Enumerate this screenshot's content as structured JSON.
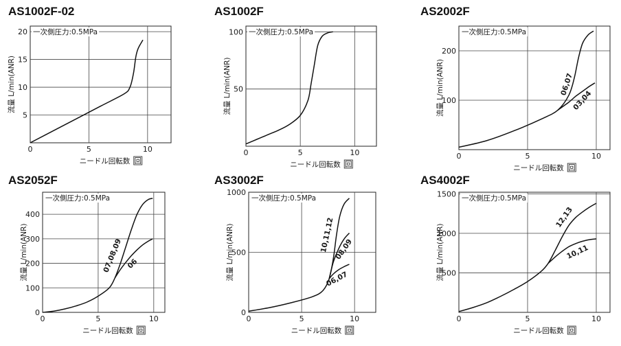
{
  "colors": {
    "curve": "#111111",
    "grid": "#444444",
    "frame": "#222222",
    "background": "#ffffff"
  },
  "chart_data": [
    {
      "type": "line",
      "title": "AS1002F-02",
      "xlabel": "ニードル回転数",
      "xlabel_unit": "回",
      "ylabel": "流量 L/min(ANR)",
      "annotation": "一次側圧力:0.5MPa",
      "xlim": [
        0,
        12
      ],
      "ylim": [
        0,
        21
      ],
      "xticks": [
        "0",
        "5",
        "10"
      ],
      "xtick_values": [
        0,
        5,
        10
      ],
      "yticks": [
        "5",
        "10",
        "15",
        "20"
      ],
      "ytick_values": [
        5,
        10,
        15,
        20
      ],
      "grid": true,
      "series": [
        {
          "name": "",
          "x": [
            0,
            2,
            4,
            6,
            8,
            8.5,
            8.8,
            9.0,
            9.2,
            9.6
          ],
          "y": [
            0,
            2.2,
            4.4,
            6.6,
            8.8,
            10.0,
            12.5,
            15.5,
            17.0,
            18.5
          ]
        }
      ]
    },
    {
      "type": "line",
      "title": "AS1002F",
      "xlabel": "ニードル回転数",
      "xlabel_unit": "回",
      "ylabel": "流量 L/min(ANR)",
      "annotation": "一次側圧力:0.5MPa",
      "xlim": [
        0,
        12
      ],
      "ylim": [
        0,
        105
      ],
      "xticks": [
        "0",
        "5",
        "10"
      ],
      "xtick_values": [
        0,
        5,
        10
      ],
      "yticks": [
        "50",
        "100"
      ],
      "ytick_values": [
        50,
        100
      ],
      "grid": true,
      "series": [
        {
          "name": "",
          "x": [
            0,
            1,
            2,
            3,
            4,
            5,
            5.7,
            6.0,
            6.3,
            6.6,
            7.0,
            7.5,
            8.0
          ],
          "y": [
            2,
            6,
            10,
            14,
            19,
            27,
            40,
            55,
            72,
            88,
            96,
            99,
            100
          ]
        }
      ]
    },
    {
      "type": "line",
      "title": "AS2002F",
      "xlabel": "ニードル回転数",
      "xlabel_unit": "回",
      "ylabel": "流量 L/min(ANR)",
      "annotation": "一次側圧力:0.5MPa",
      "xlim": [
        0,
        11
      ],
      "ylim": [
        0,
        250
      ],
      "xticks": [
        "0",
        "5",
        "10"
      ],
      "xtick_values": [
        0,
        5,
        10
      ],
      "yticks": [
        "100",
        "200"
      ],
      "ytick_values": [
        100,
        200
      ],
      "grid": true,
      "series": [
        {
          "name": "06,07",
          "label": "06,07",
          "x": [
            0,
            2,
            4,
            6,
            7.2,
            8.0,
            8.4,
            8.7,
            9.0,
            9.4,
            9.8
          ],
          "y": [
            5,
            18,
            38,
            62,
            80,
            110,
            145,
            185,
            215,
            232,
            240
          ]
        },
        {
          "name": "03,04",
          "label": "03,04",
          "x": [
            7.2,
            8.0,
            8.5,
            9.0,
            9.5,
            9.9
          ],
          "y": [
            80,
            96,
            108,
            118,
            128,
            135
          ]
        }
      ]
    },
    {
      "type": "line",
      "title": "AS2052F",
      "xlabel": "ニードル回転数",
      "xlabel_unit": "回",
      "ylabel": "流量 L/min(ANR)",
      "annotation": "一次側圧力:0.5MPa",
      "xlim": [
        0,
        11
      ],
      "ylim": [
        0,
        490
      ],
      "xticks": [
        "0",
        "5",
        "10"
      ],
      "xtick_values": [
        0,
        5,
        10
      ],
      "yticks": [
        "0",
        "100",
        "200",
        "300",
        "400"
      ],
      "ytick_values": [
        0,
        100,
        200,
        300,
        400
      ],
      "grid": true,
      "series": [
        {
          "name": "07,08,09",
          "label": "07,08,09",
          "x": [
            0,
            1,
            2,
            3,
            4,
            5,
            6,
            6.5,
            7.0,
            7.5,
            8.0,
            8.5,
            9.0,
            9.5,
            9.9
          ],
          "y": [
            0,
            5,
            14,
            26,
            42,
            66,
            100,
            140,
            200,
            270,
            340,
            400,
            440,
            460,
            465
          ]
        },
        {
          "name": "06",
          "label": "06",
          "x": [
            6.5,
            7.0,
            7.5,
            8.0,
            8.5,
            9.0,
            9.5,
            9.9
          ],
          "y": [
            140,
            175,
            205,
            232,
            255,
            275,
            290,
            300
          ]
        }
      ]
    },
    {
      "type": "line",
      "title": "AS3002F",
      "xlabel": "ニードル回転数",
      "xlabel_unit": "回",
      "ylabel": "流量 L/min(ANR)",
      "annotation": "一次側圧力:0.5MPa",
      "xlim": [
        0,
        12
      ],
      "ylim": [
        0,
        1000
      ],
      "xticks": [
        "0",
        "5",
        "10"
      ],
      "xtick_values": [
        0,
        5,
        10
      ],
      "yticks": [
        "0",
        "500",
        "1000"
      ],
      "ytick_values": [
        0,
        500,
        1000
      ],
      "grid": true,
      "series": [
        {
          "name": "10,11,12",
          "label": "10,11,12",
          "x": [
            0,
            2,
            4,
            6,
            7.0,
            7.6,
            8.0,
            8.3,
            8.6,
            9.0,
            9.5
          ],
          "y": [
            10,
            40,
            80,
            130,
            180,
            280,
            450,
            650,
            800,
            900,
            950
          ]
        },
        {
          "name": "08,09",
          "label": "08,09",
          "x": [
            7.6,
            8.0,
            8.5,
            9.0,
            9.5
          ],
          "y": [
            280,
            420,
            530,
            610,
            660
          ]
        },
        {
          "name": "06,07",
          "label": "06,07",
          "x": [
            7.6,
            8.0,
            8.5,
            9.0,
            9.5
          ],
          "y": [
            280,
            320,
            355,
            380,
            400
          ]
        }
      ]
    },
    {
      "type": "line",
      "title": "AS4002F",
      "xlabel": "ニードル回転数",
      "xlabel_unit": "回",
      "ylabel": "流量 L/min(ANR)",
      "annotation": "一次側圧力:0.5MPa",
      "xlim": [
        0,
        11
      ],
      "ylim": [
        0,
        1520
      ],
      "xticks": [
        "0",
        "5",
        "10"
      ],
      "xtick_values": [
        0,
        5,
        10
      ],
      "yticks": [
        "500",
        "1000",
        "1500"
      ],
      "ytick_values": [
        500,
        1000,
        1500
      ],
      "grid": true,
      "series": [
        {
          "name": "12,13",
          "label": "12,13",
          "x": [
            0,
            1,
            2,
            3,
            4,
            5,
            6,
            6.5,
            7.0,
            7.5,
            8.0,
            8.5,
            9.0,
            9.5,
            10.0
          ],
          "y": [
            10,
            60,
            120,
            200,
            290,
            390,
            520,
            620,
            780,
            950,
            1100,
            1200,
            1270,
            1330,
            1380
          ]
        },
        {
          "name": "10,11",
          "label": "10,11",
          "x": [
            6.5,
            7.0,
            7.5,
            8.0,
            8.5,
            9.0,
            9.5,
            10.0
          ],
          "y": [
            620,
            700,
            770,
            830,
            870,
            900,
            920,
            930
          ]
        }
      ]
    }
  ]
}
